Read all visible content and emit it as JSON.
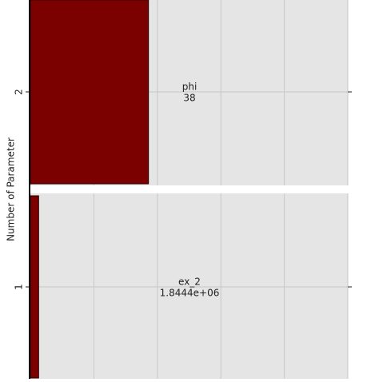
{
  "chart_data": {
    "type": "bar",
    "orientation": "horizontal",
    "y_label": "Number of Parameter",
    "categories": [
      "1",
      "2"
    ],
    "values": [
      0.13,
      1.86
    ],
    "color": "#7b0000",
    "bar_labels": [
      [
        "ex_2",
        "1.8444e+06"
      ],
      [
        "phi",
        "38"
      ]
    ],
    "xlim": [
      0,
      5
    ],
    "xticks": [
      0,
      1,
      2,
      3,
      4,
      5
    ],
    "grid": true
  }
}
